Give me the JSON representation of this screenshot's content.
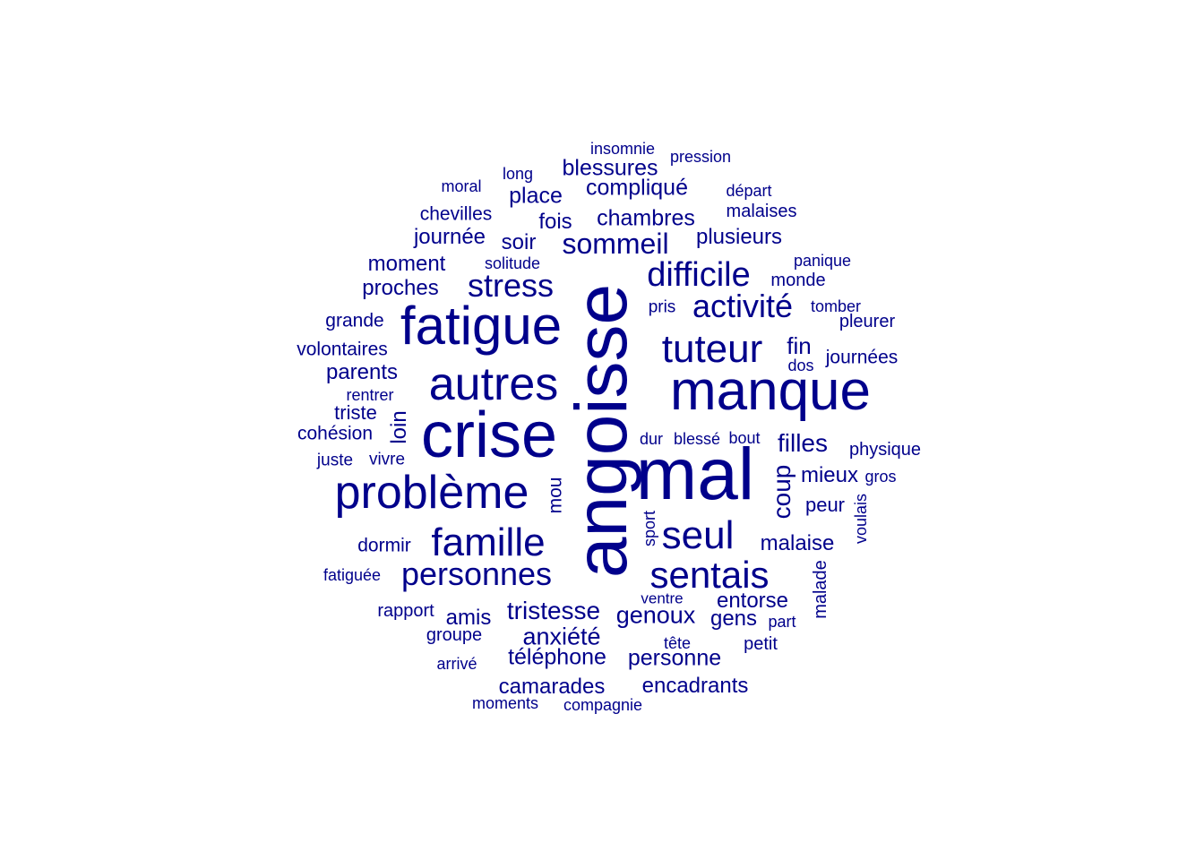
{
  "cloud": {
    "color": "#00008B",
    "words": [
      "angoisse",
      "mal",
      "crise",
      "manque",
      "fatigue",
      "autres",
      "problème",
      "famille",
      "sentais",
      "tuteur",
      "seul",
      "personnes",
      "difficile",
      "stress",
      "activité",
      "sommeil",
      "coup",
      "tristesse",
      "anxiété",
      "genoux",
      "téléphone",
      "personne",
      "chambres",
      "compliqué",
      "blessures",
      "place",
      "fois",
      "soir",
      "plusieurs",
      "camarades",
      "encadrants",
      "filles",
      "malaise",
      "entorse",
      "amis",
      "gens",
      "fin",
      "mieux",
      "peur",
      "moment",
      "proches",
      "journée",
      "chevilles",
      "parents",
      "triste",
      "cohésion",
      "loin",
      "mou",
      "groupe",
      "rapport",
      "dormir",
      "grande",
      "volontaires",
      "journées",
      "physique",
      "monde",
      "malaises",
      "insomnie",
      "pression",
      "long",
      "moral",
      "départ",
      "solitude",
      "panique",
      "pris",
      "tomber",
      "pleurer",
      "dos",
      "rentrer",
      "juste",
      "vivre",
      "dur",
      "blessé",
      "bout",
      "gros",
      "voulais",
      "sport",
      "malade",
      "ventre",
      "part",
      "tête",
      "petit",
      "arrivé",
      "moments",
      "compagnie",
      "fatiguée"
    ]
  }
}
